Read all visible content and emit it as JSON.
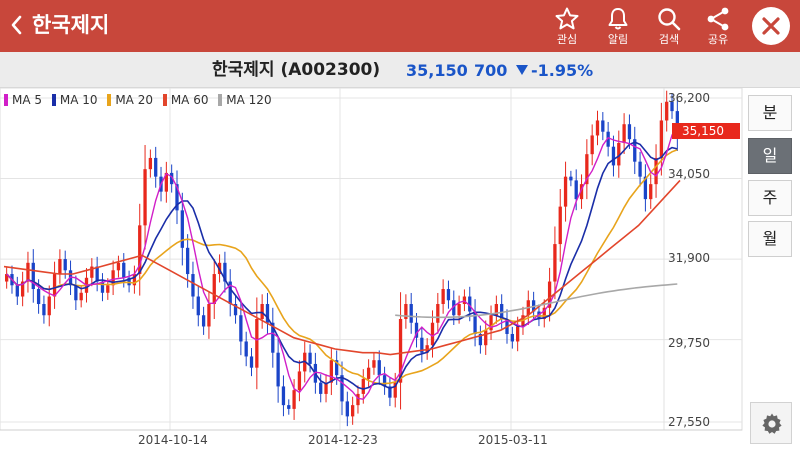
{
  "header": {
    "title": "한국제지",
    "actions": [
      {
        "icon": "star-icon",
        "label": "관심"
      },
      {
        "icon": "bell-icon",
        "label": "알림"
      },
      {
        "icon": "search-icon",
        "label": "검색"
      },
      {
        "icon": "share-icon",
        "label": "공유"
      }
    ]
  },
  "info": {
    "name": "한국제지 (A002300)",
    "price": "35,150",
    "change": "700",
    "change_pct": "-1.95%",
    "direction": "down"
  },
  "legend": [
    {
      "label": "MA 5",
      "color": "#d11fc8"
    },
    {
      "label": "MA 10",
      "color": "#1a2ea8"
    },
    {
      "label": "MA 20",
      "color": "#e8a41c"
    },
    {
      "label": "MA 60",
      "color": "#e2462c"
    },
    {
      "label": "MA 120",
      "color": "#a8a8a8"
    }
  ],
  "yaxis": [
    "36,200",
    "34,050",
    "31,900",
    "29,750",
    "27,550"
  ],
  "price_tag": "35,150",
  "xaxis": [
    "2014-10-14",
    "2014-12-23",
    "2015-03-11"
  ],
  "side_buttons": [
    {
      "label": "분",
      "active": false
    },
    {
      "label": "일",
      "active": true
    },
    {
      "label": "주",
      "active": false
    },
    {
      "label": "월",
      "active": false
    }
  ],
  "colors": {
    "up": "#e8281c",
    "down": "#1a44c8",
    "header": "#c8473b"
  },
  "chart_data": {
    "type": "candlestick",
    "ylim": [
      27550,
      36200
    ],
    "x_ticks": [
      "2014-10-14",
      "2014-12-23",
      "2015-03-11"
    ],
    "closes": [
      31500,
      31200,
      30900,
      31300,
      31800,
      31100,
      30700,
      30400,
      30900,
      31500,
      31900,
      31600,
      31200,
      30800,
      31000,
      31400,
      31700,
      31300,
      31000,
      31200,
      31600,
      31800,
      31400,
      31200,
      31500,
      32800,
      34300,
      34600,
      34100,
      33700,
      34200,
      33900,
      33200,
      32200,
      31500,
      30900,
      30400,
      30100,
      30700,
      31500,
      31800,
      31300,
      30700,
      30400,
      29700,
      29300,
      29000,
      30300,
      30700,
      30200,
      29400,
      28500,
      28000,
      27900,
      28400,
      28900,
      29400,
      29100,
      28600,
      28300,
      28600,
      29200,
      28800,
      28100,
      27700,
      28000,
      28300,
      28700,
      29000,
      29200,
      28800,
      28500,
      28200,
      28600,
      30300,
      30700,
      30200,
      29800,
      29400,
      29600,
      30200,
      30700,
      31100,
      30800,
      30400,
      30700,
      30900,
      30500,
      29900,
      29600,
      30000,
      30400,
      30700,
      30300,
      29900,
      29700,
      30100,
      30400,
      30800,
      30500,
      30300,
      30600,
      31300,
      32300,
      33300,
      34100,
      34000,
      33500,
      33900,
      34700,
      35200,
      35600,
      35300,
      34900,
      34400,
      35000,
      35500,
      35100,
      34500,
      34100,
      33500,
      33900,
      34600,
      35600,
      36100,
      35850,
      35150
    ],
    "ma60": [
      31700,
      31650,
      31600,
      31550,
      31500,
      31500,
      31600,
      31700,
      31800,
      31900,
      32000,
      31800,
      31600,
      31400,
      31200,
      31000,
      30800,
      30600,
      30400,
      30200,
      30000,
      29800,
      29700,
      29600,
      29500,
      29450,
      29400,
      29400,
      29350,
      29400,
      29450,
      29500,
      29600,
      29700,
      29800,
      29900,
      30000,
      30200,
      30400,
      30700,
      31000,
      31300,
      31600,
      31900,
      32200,
      32500,
      32800,
      33200,
      33600,
      34000
    ]
  }
}
